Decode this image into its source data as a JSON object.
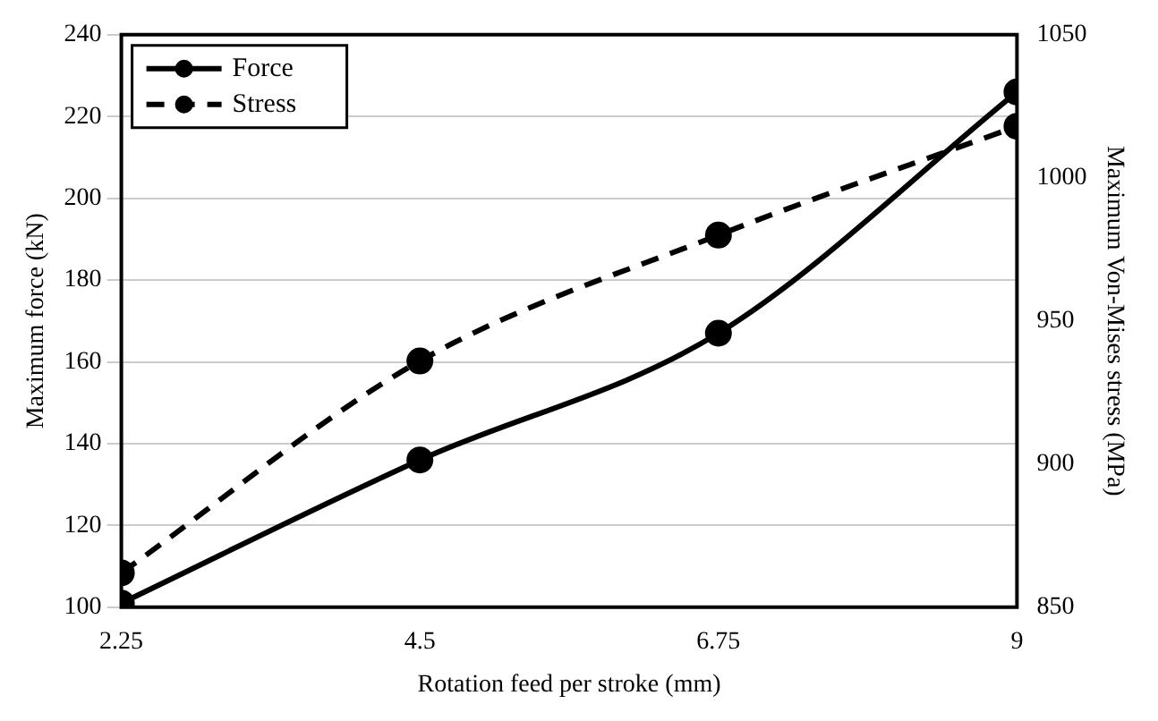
{
  "chart_data": {
    "type": "line",
    "xlabel": "Rotation feed per stroke (mm)",
    "ylabel": "Maximum force (kN)",
    "y2label": "Maximum Von-Mises stress (MPa)",
    "x": [
      2.25,
      4.5,
      6.75,
      9
    ],
    "xlim": [
      2.25,
      9
    ],
    "xticks": [
      2.25,
      4.5,
      6.75,
      9
    ],
    "ylim": [
      100,
      240
    ],
    "yticks": [
      100,
      120,
      140,
      160,
      180,
      200,
      220,
      240
    ],
    "y2lim": [
      850,
      1050
    ],
    "y2ticks": [
      850,
      900,
      950,
      1000,
      1050
    ],
    "series": [
      {
        "name": "Force",
        "color": "#000000",
        "values": [
          101,
          136,
          167,
          226
        ],
        "line_style": "solid"
      },
      {
        "name": "Stress",
        "color": "#000000",
        "values": [
          862,
          936,
          980,
          1018
        ],
        "axis": "y2",
        "line_style": "dashed"
      }
    ],
    "marker": "circle",
    "grid": "y",
    "legend": "top left"
  }
}
